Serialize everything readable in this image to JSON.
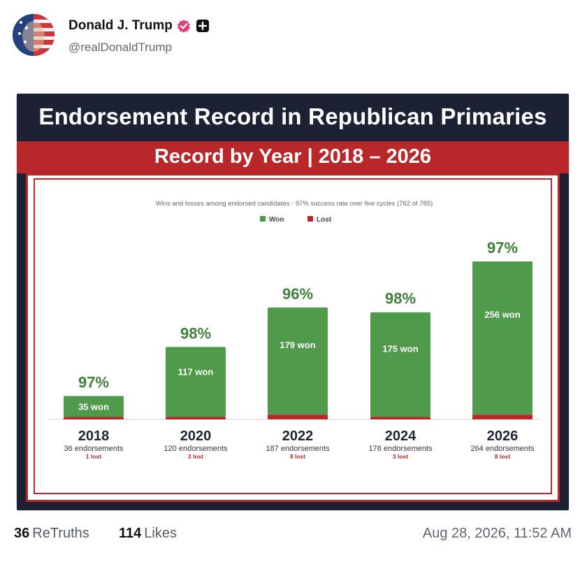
{
  "post": {
    "display_name": "Donald J. Trump",
    "handle": "@realDonaldTrump",
    "icons": [
      "avatar",
      "verified-badge-icon",
      "plus-icon"
    ],
    "retruths_count": "36",
    "retruths_label": "ReTruths",
    "likes_count": "114",
    "likes_label": "Likes",
    "timestamp": "Aug 28, 2026, 11:52 AM"
  },
  "colors": {
    "won": "#4f9a4b",
    "lost": "#b8282b",
    "header_bg": "#1c2233",
    "band": "#b8282b",
    "verified": "#e0407d"
  },
  "chart_data": {
    "type": "bar",
    "title": "Endorsement Record in Republican Primaries",
    "subtitle": "Record by Year | 2018 – 2026",
    "caption": "Wins and losses among endorsed candidates · 97% success rate over five cycles (762 of 785)",
    "legend": [
      "Won",
      "Lost"
    ],
    "legend_position": "top-center",
    "stacked": true,
    "categories": [
      "2018",
      "2020",
      "2022",
      "2024",
      "2026"
    ],
    "series": [
      {
        "name": "Won",
        "values": [
          35,
          117,
          179,
          175,
          256
        ]
      },
      {
        "name": "Lost",
        "values": [
          1,
          3,
          8,
          3,
          8
        ]
      }
    ],
    "percent_labels": [
      "97%",
      "98%",
      "96%",
      "98%",
      "97%"
    ],
    "won_labels": [
      "35 won",
      "117 won",
      "179 won",
      "175 won",
      "256 won"
    ],
    "endorsement_labels": [
      "36 endorsements",
      "120 endorsements",
      "187 endorsements",
      "178 endorsements",
      "264 endorsements"
    ],
    "lost_labels": [
      "1 lost",
      "3 lost",
      "8 lost",
      "3 lost",
      "8 lost"
    ],
    "grid": false
  }
}
